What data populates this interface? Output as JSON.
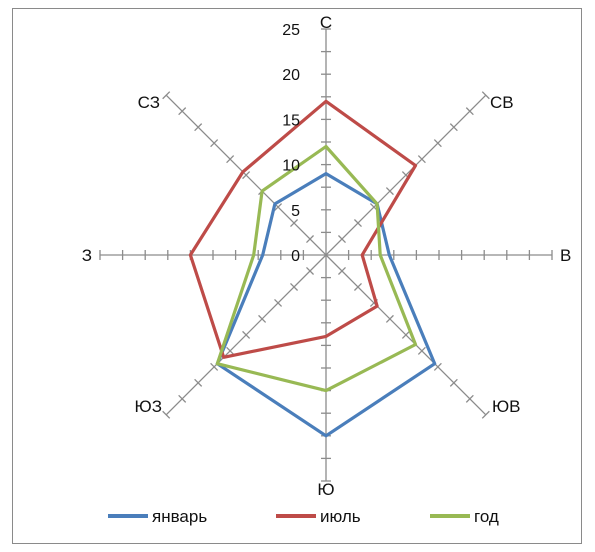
{
  "chart_data": {
    "type": "radar",
    "directions": [
      "С",
      "СВ",
      "В",
      "ЮВ",
      "Ю",
      "ЮЗ",
      "З",
      "СЗ"
    ],
    "rlim": [
      0,
      25
    ],
    "ticks": [
      "0",
      "5",
      "10",
      "15",
      "20",
      "25"
    ],
    "grid": false,
    "legend_position": "bottom",
    "series": [
      {
        "name": "январь",
        "color": "#4a7ebb",
        "values": [
          9,
          8,
          7,
          17,
          20,
          17,
          7,
          8
        ]
      },
      {
        "name": "июль",
        "color": "#be4b48",
        "values": [
          17,
          14,
          4,
          8,
          9,
          16,
          15,
          13
        ]
      },
      {
        "name": "год",
        "color": "#98b954",
        "values": [
          12,
          8,
          6,
          14,
          15,
          17,
          8,
          10
        ]
      }
    ]
  }
}
